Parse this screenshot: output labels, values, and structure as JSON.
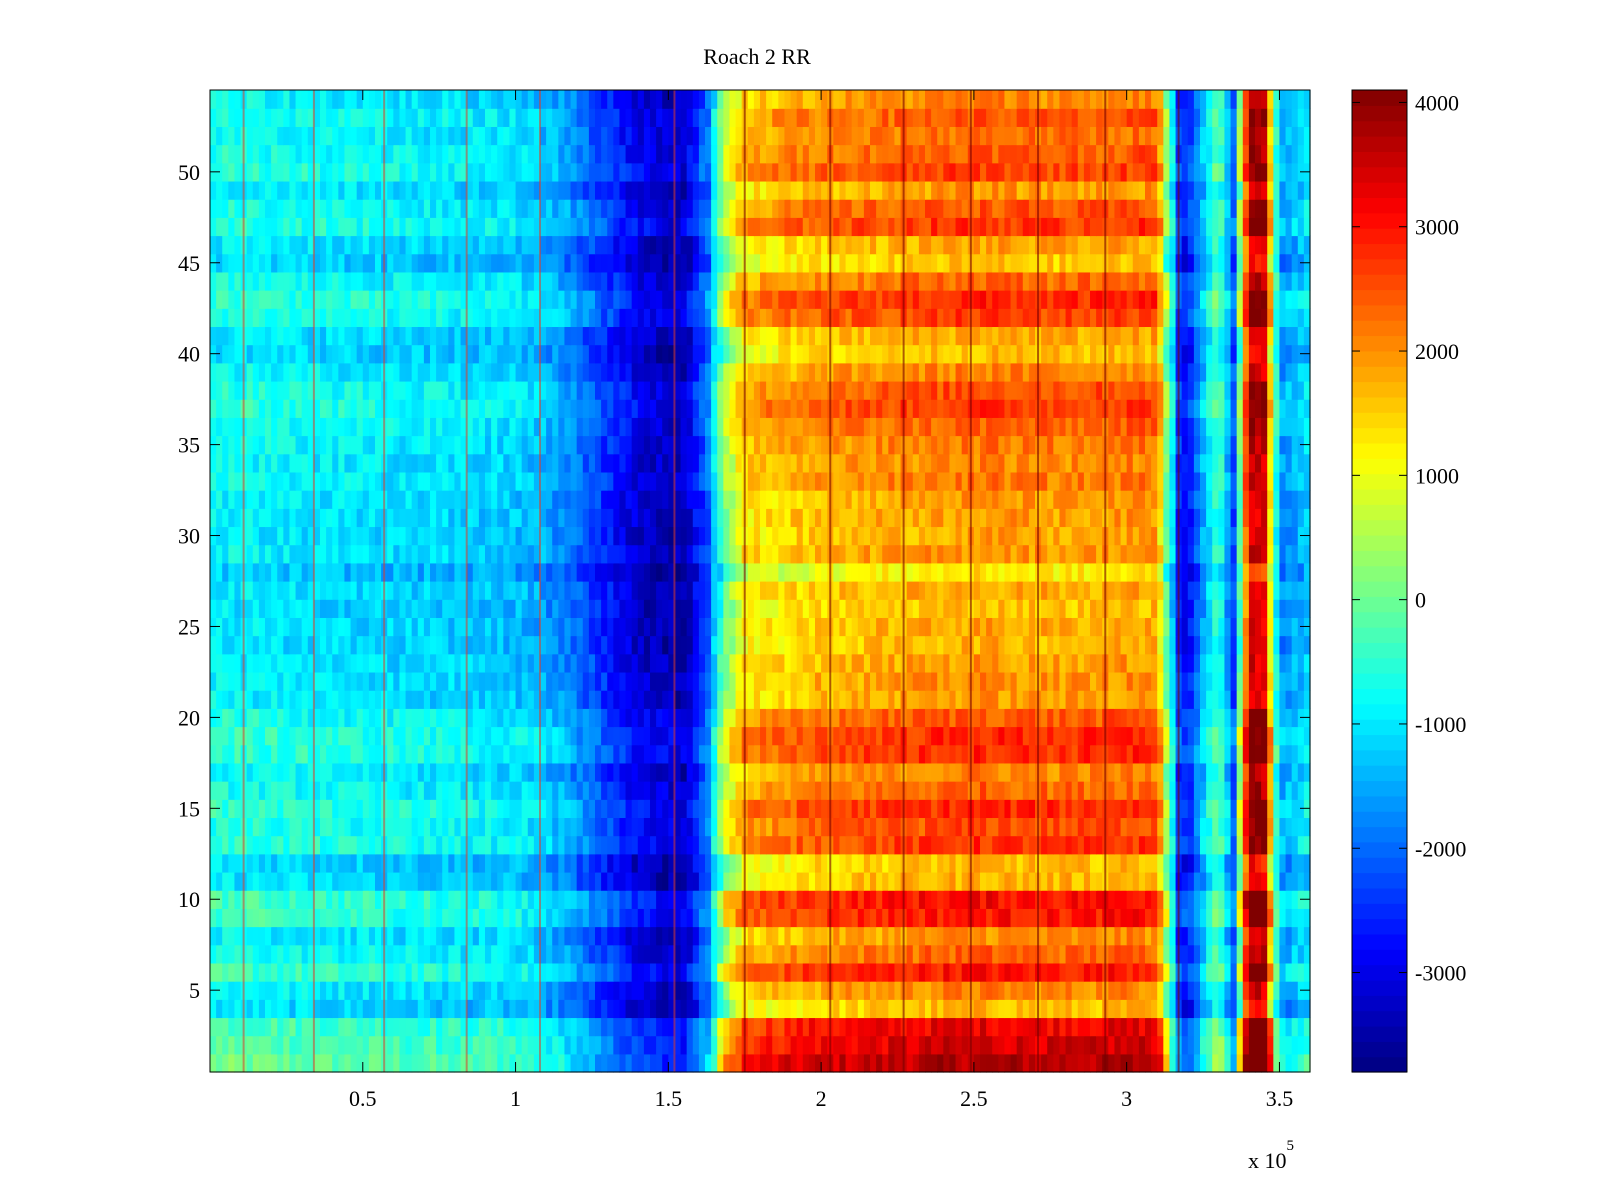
{
  "chart_data": {
    "type": "heatmap",
    "title": "Roach 2 RR",
    "xlabel": "",
    "ylabel": "",
    "x_exponent_label": "x 10",
    "x_exponent_power": "5",
    "xlim": [
      0,
      3.6
    ],
    "ylim": [
      0.5,
      54.5
    ],
    "x_ticks": [
      {
        "value": 0.5,
        "label": "0.5"
      },
      {
        "value": 1.0,
        "label": "1"
      },
      {
        "value": 1.5,
        "label": "1.5"
      },
      {
        "value": 2.0,
        "label": "2"
      },
      {
        "value": 2.5,
        "label": "2.5"
      },
      {
        "value": 3.0,
        "label": "3"
      },
      {
        "value": 3.5,
        "label": "3.5"
      }
    ],
    "y_ticks": [
      {
        "value": 5,
        "label": "5"
      },
      {
        "value": 10,
        "label": "10"
      },
      {
        "value": 15,
        "label": "15"
      },
      {
        "value": 20,
        "label": "20"
      },
      {
        "value": 25,
        "label": "25"
      },
      {
        "value": 30,
        "label": "30"
      },
      {
        "value": 35,
        "label": "35"
      },
      {
        "value": 40,
        "label": "40"
      },
      {
        "value": 45,
        "label": "45"
      },
      {
        "value": 50,
        "label": "50"
      }
    ],
    "rows": 54,
    "colormap": "jet",
    "clim": [
      -3800,
      4100
    ],
    "colorbar_ticks": [
      {
        "value": 4000,
        "label": "4000"
      },
      {
        "value": 3000,
        "label": "3000"
      },
      {
        "value": 2000,
        "label": "2000"
      },
      {
        "value": 1000,
        "label": "1000"
      },
      {
        "value": 0,
        "label": "0"
      },
      {
        "value": -1000,
        "label": "-1000"
      },
      {
        "value": -2000,
        "label": "-2000"
      },
      {
        "value": -3000,
        "label": "-3000"
      }
    ],
    "column_profile_x": [
      0,
      0.5,
      1.0,
      1.15,
      1.3,
      1.4,
      1.55,
      1.63,
      1.68,
      1.75,
      2.0,
      2.5,
      2.8,
      3.1,
      3.17,
      3.2,
      3.25,
      3.3,
      3.35,
      3.4,
      3.45,
      3.5,
      3.6
    ],
    "column_profile_values": [
      -600,
      -800,
      -1000,
      -1400,
      -2300,
      -2900,
      -3200,
      -1800,
      600,
      1800,
      2200,
      2500,
      2400,
      2500,
      -2200,
      -2600,
      -1200,
      0,
      -2000,
      4000,
      3800,
      -1500,
      -900
    ],
    "row_offsets": [
      2100,
      1800,
      1600,
      -200,
      300,
      1300,
      600,
      200,
      1300,
      1400,
      -100,
      -200,
      1000,
      800,
      1100,
      600,
      300,
      1100,
      1100,
      700,
      100,
      200,
      100,
      -100,
      0,
      -200,
      0,
      -600,
      200,
      0,
      100,
      100,
      400,
      300,
      400,
      600,
      1000,
      800,
      300,
      -200,
      0,
      900,
      1100,
      600,
      -300,
      0,
      1000,
      700,
      100,
      900,
      700,
      500,
      700,
      300
    ],
    "vertical_lines_x": [
      0.11,
      0.34,
      0.57,
      0.84,
      1.08,
      1.52,
      1.75,
      2.03,
      2.27,
      2.49,
      2.71,
      2.93,
      3.17
    ]
  }
}
